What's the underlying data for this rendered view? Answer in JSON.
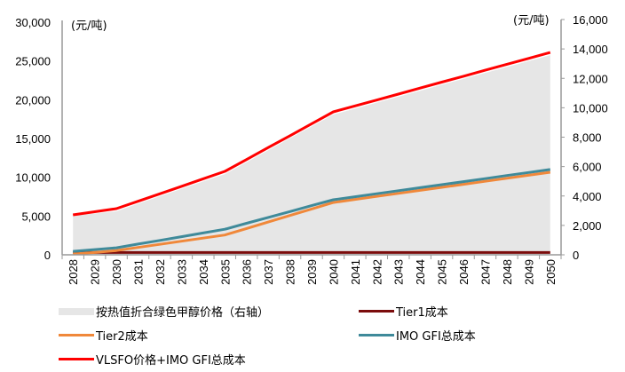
{
  "chart_data": {
    "type": "line",
    "title": "",
    "xlabel": "",
    "ylabel_left": "(元/吨)",
    "ylabel_right": "(元/吨)",
    "categories": [
      "2028",
      "2029",
      "2030",
      "2031",
      "2032",
      "2033",
      "2034",
      "2035",
      "2036",
      "2037",
      "2038",
      "2039",
      "2040",
      "2041",
      "2042",
      "2043",
      "2044",
      "2045",
      "2046",
      "2047",
      "2048",
      "2049",
      "2050"
    ],
    "y_left": {
      "min": 0,
      "max": 30000,
      "ticks": [
        0,
        5000,
        10000,
        15000,
        20000,
        25000,
        30000
      ],
      "tick_labels": [
        "0",
        "5,000",
        "10,000",
        "15,000",
        "20,000",
        "25,000",
        "30,000"
      ]
    },
    "y_right": {
      "min": 0,
      "max": 16000,
      "ticks": [
        0,
        2000,
        4000,
        6000,
        8000,
        10000,
        12000,
        14000,
        16000
      ],
      "tick_labels": [
        "0",
        "2,000",
        "4,000",
        "6,000",
        "8,000",
        "10,000",
        "12,000",
        "14,000",
        "16,000"
      ]
    },
    "grid": false,
    "legend_position": "bottom",
    "series": [
      {
        "name": "按热值折合绿色甲醇价格（右轴）",
        "type": "area",
        "axis": "right",
        "color": "#e6e6e6",
        "values": [
          2660,
          2810,
          2960,
          3470,
          3980,
          4480,
          4990,
          5490,
          6300,
          7110,
          7920,
          8730,
          9540,
          9940,
          10350,
          10750,
          11150,
          11560,
          11960,
          12370,
          12770,
          13170,
          13580
        ]
      },
      {
        "name": "Tier1成本",
        "type": "line",
        "axis": "left",
        "color": "#7b0c0c",
        "values": [
          300,
          300,
          300,
          300,
          300,
          300,
          300,
          300,
          300,
          300,
          300,
          300,
          300,
          300,
          300,
          300,
          300,
          300,
          300,
          300,
          300,
          300,
          300
        ]
      },
      {
        "name": "Tier2成本",
        "type": "line",
        "axis": "left",
        "color": "#f0883a",
        "values": [
          100,
          300,
          550,
          950,
          1350,
          1750,
          2150,
          2550,
          3390,
          4230,
          5070,
          5910,
          6750,
          7140,
          7530,
          7920,
          8310,
          8700,
          9090,
          9480,
          9870,
          10260,
          10650
        ]
      },
      {
        "name": "IMO GFI总成本",
        "type": "line",
        "axis": "left",
        "color": "#3f8a9a",
        "values": [
          450,
          670,
          900,
          1380,
          1860,
          2340,
          2820,
          3300,
          4060,
          4820,
          5580,
          6340,
          7100,
          7490,
          7880,
          8270,
          8660,
          9050,
          9440,
          9830,
          10220,
          10610,
          11000
        ]
      },
      {
        "name": "VLSFO价格+IMO GFI总成本",
        "type": "line",
        "axis": "left",
        "color": "#ff0000",
        "values": [
          5150,
          5550,
          5950,
          6910,
          7870,
          8830,
          9800,
          10760,
          12290,
          13830,
          15360,
          16900,
          18430,
          19200,
          19960,
          20730,
          21500,
          22270,
          23030,
          23800,
          24570,
          25330,
          26100
        ]
      }
    ]
  }
}
